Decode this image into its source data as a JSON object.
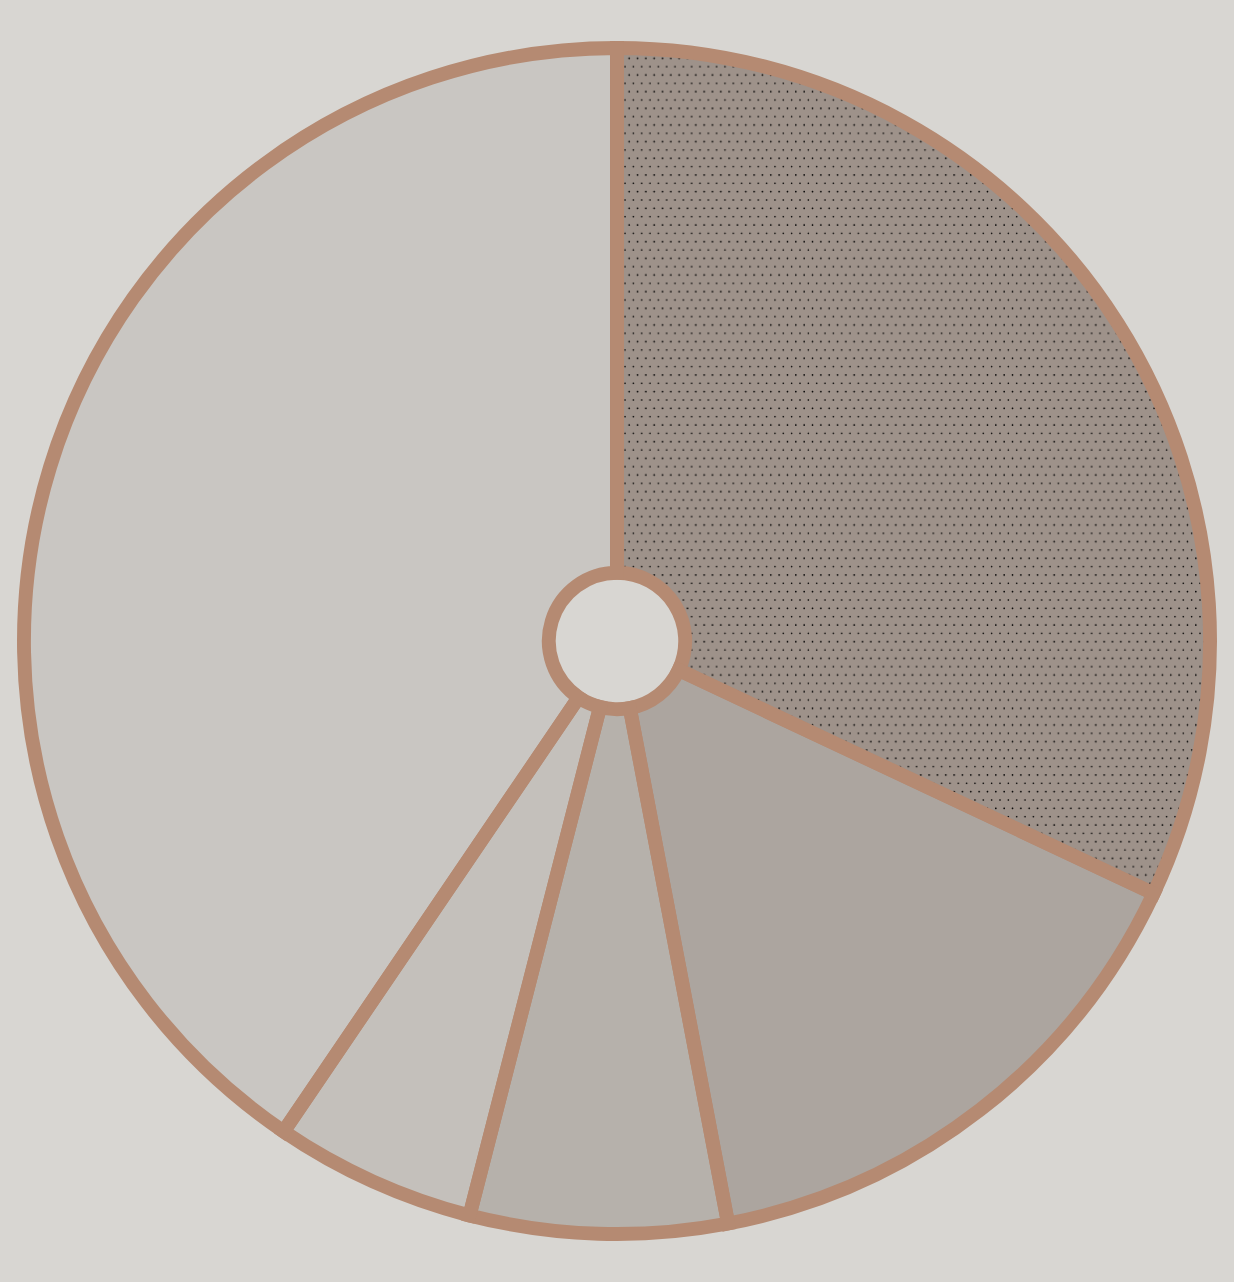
{
  "chart_data": {
    "type": "pie",
    "categories": [
      null,
      null,
      null,
      null,
      null
    ],
    "values": [
      32,
      15,
      7,
      5.5,
      40.5
    ],
    "colors": [
      "#9e928a",
      "#aca59f",
      "#b6b1ab",
      "#c4c0bb",
      "#c9c6c2"
    ]
  }
}
